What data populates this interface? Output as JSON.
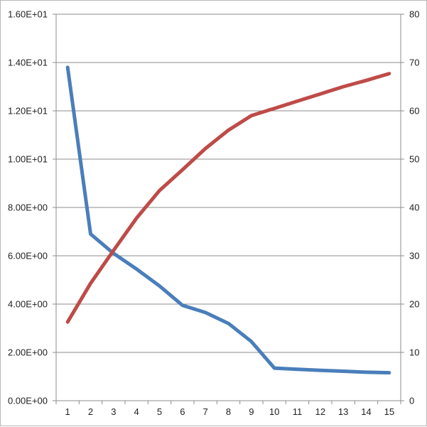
{
  "chart_data": {
    "type": "line",
    "title": "",
    "xlabel": "",
    "ylabel": "",
    "y2label": "",
    "categories": [
      "1",
      "2",
      "3",
      "4",
      "5",
      "6",
      "7",
      "8",
      "9",
      "10",
      "11",
      "12",
      "13",
      "14",
      "15"
    ],
    "ylim": [
      0,
      16
    ],
    "y2lim": [
      0,
      80
    ],
    "y_ticks": [
      "0.00E+00",
      "2.00E+00",
      "4.00E+00",
      "6.00E+00",
      "8.00E+00",
      "1.00E+01",
      "1.20E+01",
      "1.40E+01",
      "1.60E+01"
    ],
    "y2_ticks": [
      "0",
      "10",
      "20",
      "30",
      "40",
      "50",
      "60",
      "70",
      "80"
    ],
    "grid": true,
    "legend": "none",
    "series": [
      {
        "axis": "left",
        "color": "#4a7ebb",
        "values": [
          13.8,
          6.9,
          6.1,
          5.45,
          4.75,
          3.95,
          3.65,
          3.2,
          2.45,
          1.35,
          1.3,
          1.26,
          1.22,
          1.18,
          1.16
        ]
      },
      {
        "axis": "right",
        "color": "#be4b48",
        "values": [
          16.3,
          24.3,
          31.1,
          37.8,
          43.5,
          47.8,
          52.2,
          56.0,
          59.0,
          60.5,
          62.0,
          63.5,
          65.0,
          66.3,
          67.7
        ]
      }
    ]
  }
}
